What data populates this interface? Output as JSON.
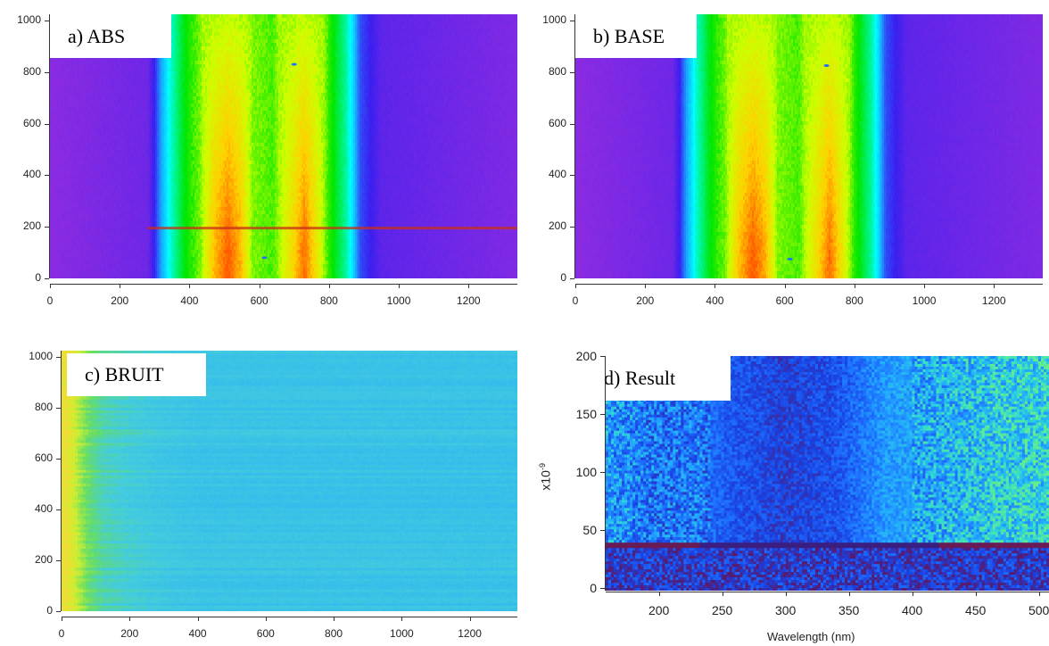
{
  "chart_data": [
    {
      "type": "heatmap",
      "label": "a) ABS",
      "xlim": [
        0,
        1340
      ],
      "ylim": [
        0,
        1024
      ],
      "x_ticks": [
        "0",
        "200",
        "400",
        "600",
        "800",
        "1000",
        "1200"
      ],
      "y_ticks": [
        "0",
        "200",
        "400",
        "600",
        "800",
        "1000"
      ],
      "xlabel": "",
      "ylabel": "",
      "colorscale": [
        "#8a2be2",
        "#3a1ff0",
        "#1e90ff",
        "#00ffff",
        "#00e600",
        "#ccff00",
        "#ffd000",
        "#ff5a00"
      ],
      "profile": {
        "x": [
          0,
          280,
          300,
          320,
          345,
          380,
          430,
          470,
          510,
          545,
          580,
          640,
          700,
          730,
          760,
          800,
          850,
          870,
          890,
          950,
          1340
        ],
        "intensity": [
          0.0,
          0.05,
          0.15,
          0.32,
          0.45,
          0.55,
          0.65,
          0.88,
          1.0,
          0.9,
          0.66,
          0.62,
          0.85,
          0.98,
          0.82,
          0.6,
          0.48,
          0.38,
          0.2,
          0.08,
          0.02
        ]
      },
      "features": [
        {
          "kind": "horizontal_line",
          "y": 195,
          "x_range": [
            280,
            1340
          ]
        },
        {
          "kind": "spot",
          "x": 700,
          "y": 830
        },
        {
          "kind": "spot",
          "x": 615,
          "y": 80
        }
      ]
    },
    {
      "type": "heatmap",
      "label": "b) BASE",
      "xlim": [
        0,
        1340
      ],
      "ylim": [
        0,
        1024
      ],
      "x_ticks": [
        "0",
        "200",
        "400",
        "600",
        "800",
        "1000",
        "1200"
      ],
      "y_ticks": [
        "0",
        "200",
        "400",
        "600",
        "800",
        "1000"
      ],
      "xlabel": "",
      "ylabel": "",
      "colorscale": [
        "#8a2be2",
        "#3a1ff0",
        "#1e90ff",
        "#00ffff",
        "#00e600",
        "#ccff00",
        "#ffd000",
        "#ff5a00"
      ],
      "profile": {
        "x": [
          0,
          280,
          300,
          320,
          345,
          380,
          430,
          470,
          510,
          545,
          580,
          640,
          700,
          730,
          760,
          800,
          850,
          870,
          890,
          950,
          1340
        ],
        "intensity": [
          0.0,
          0.05,
          0.15,
          0.32,
          0.45,
          0.55,
          0.65,
          0.88,
          1.0,
          0.9,
          0.66,
          0.62,
          0.85,
          0.98,
          0.82,
          0.6,
          0.48,
          0.38,
          0.2,
          0.08,
          0.02
        ]
      },
      "features": [
        {
          "kind": "spot",
          "x": 720,
          "y": 825
        },
        {
          "kind": "spot",
          "x": 615,
          "y": 75
        }
      ]
    },
    {
      "type": "heatmap",
      "label": "c) BRUIT",
      "xlim": [
        0,
        1340
      ],
      "ylim": [
        0,
        1024
      ],
      "x_ticks": [
        "0",
        "200",
        "400",
        "600",
        "800",
        "1000",
        "1200"
      ],
      "y_ticks": [
        "0",
        "200",
        "400",
        "600",
        "800",
        "1000"
      ],
      "xlabel": "",
      "ylabel": "",
      "colorscale": [
        "#1e8fff",
        "#33bbee",
        "#44ccdd",
        "#66dd66",
        "#ccee33",
        "#eedd33"
      ],
      "profile": {
        "x": [
          0,
          20,
          50,
          80,
          120,
          200,
          300,
          400,
          1340
        ],
        "intensity": [
          1.0,
          0.95,
          0.75,
          0.6,
          0.48,
          0.4,
          0.34,
          0.3,
          0.28
        ]
      }
    },
    {
      "type": "heatmap",
      "label": "d) Result",
      "xlim": [
        158,
        508
      ],
      "ylim": [
        -2,
        200
      ],
      "x_ticks": [
        "200",
        "250",
        "300",
        "350",
        "400",
        "450",
        "500"
      ],
      "y_ticks": [
        "0",
        "50",
        "100",
        "150",
        "200"
      ],
      "xlabel": "Wavelength (nm)",
      "ylabel": "x10-9",
      "colorscale": [
        "#5a1a6a",
        "#1a3fe0",
        "#1e70ff",
        "#22aaff",
        "#33ddcc",
        "#66ee88"
      ],
      "features": [
        {
          "kind": "horizontal_band",
          "y": 37,
          "x_range": [
            158,
            508
          ]
        }
      ]
    }
  ],
  "panels": {
    "a": {
      "label": "a) ABS"
    },
    "b": {
      "label": "b) BASE"
    },
    "c": {
      "label": "c) BRUIT"
    },
    "d": {
      "label": "d) Result",
      "xlabel": "Wavelength (nm)",
      "ylabel_base": "x10",
      "ylabel_exp": "-9"
    }
  }
}
